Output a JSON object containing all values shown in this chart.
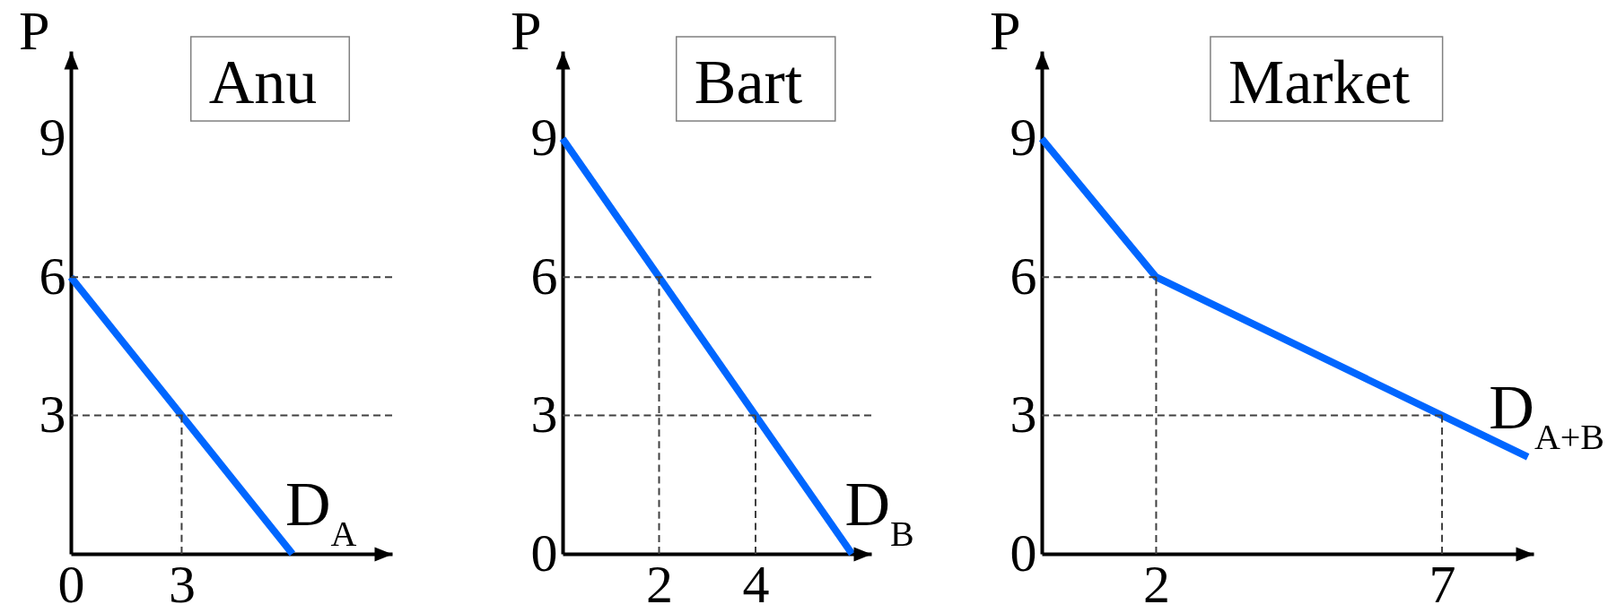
{
  "chart_data": [
    {
      "type": "line",
      "title": "Anu",
      "ylabel": "P",
      "xlim": [
        0,
        8.7
      ],
      "xticks": [
        0,
        3
      ],
      "ylim": [
        0,
        10.9
      ],
      "yticks": [
        3,
        6,
        9
      ],
      "series": [
        {
          "name": "D$_{A}$",
          "color": "#0066ff",
          "x": [
            0,
            6
          ],
          "values": [
            6,
            0
          ]
        },
        {
          "color": "#404040",
          "line_style": "dashed",
          "x": [
            0,
            8.7
          ],
          "values": [
            6,
            6
          ]
        },
        {
          "color": "#404040",
          "line_style": "dashed",
          "x": [
            0,
            8.7
          ],
          "values": [
            3,
            3
          ]
        },
        {
          "color": "#404040",
          "line_style": "dashed",
          "x": [
            3,
            3
          ],
          "values": [
            3,
            0
          ]
        }
      ]
    },
    {
      "type": "line",
      "title": "Bart",
      "ylabel": "P",
      "xlim": [
        0,
        6.4
      ],
      "xticks": [
        2,
        4
      ],
      "ylim": [
        0,
        10.9
      ],
      "yticks": [
        0,
        3,
        6,
        9
      ],
      "series": [
        {
          "name": "D$_{B}$",
          "color": "#0066ff",
          "x": [
            0,
            6
          ],
          "values": [
            9,
            0
          ]
        },
        {
          "color": "#404040",
          "line_style": "dashed",
          "x": [
            0,
            6.4
          ],
          "values": [
            6,
            6
          ]
        },
        {
          "color": "#404040",
          "line_style": "dashed",
          "x": [
            0,
            6.4
          ],
          "values": [
            3,
            3
          ]
        },
        {
          "color": "#404040",
          "line_style": "dashed",
          "x": [
            2,
            2
          ],
          "values": [
            6,
            0
          ]
        },
        {
          "color": "#404040",
          "line_style": "dashed",
          "x": [
            4,
            4
          ],
          "values": [
            3,
            0
          ]
        }
      ]
    },
    {
      "type": "line",
      "title": "Market",
      "ylabel": "P",
      "xlim": [
        0,
        8.6
      ],
      "xticks": [
        2,
        7
      ],
      "ylim": [
        0,
        10.9
      ],
      "yticks": [
        0,
        3,
        6,
        9
      ],
      "series": [
        {
          "name": "D$_{A+B}$",
          "color": "#0066ff",
          "x": [
            0,
            2,
            7,
            8.5
          ],
          "values": [
            9,
            6,
            3,
            2.1
          ]
        },
        {
          "color": "#404040",
          "line_style": "dashed",
          "x": [
            0,
            2
          ],
          "values": [
            6,
            6
          ]
        },
        {
          "color": "#404040",
          "line_style": "dashed",
          "x": [
            0,
            7
          ],
          "values": [
            3,
            3
          ]
        },
        {
          "color": "#404040",
          "line_style": "dashed",
          "x": [
            2,
            2
          ],
          "values": [
            6,
            0
          ]
        },
        {
          "color": "#404040",
          "line_style": "dashed",
          "x": [
            7,
            7
          ],
          "values": [
            3,
            0
          ]
        }
      ]
    }
  ]
}
